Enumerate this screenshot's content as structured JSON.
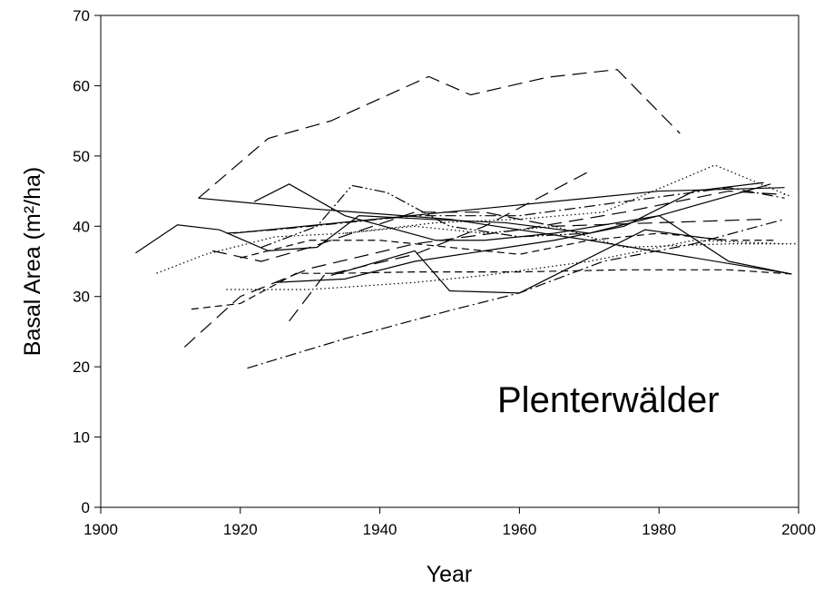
{
  "chart_data": {
    "type": "line",
    "xlabel": "Year",
    "ylabel": "Basal Area (m²/ha)",
    "annotation": "Plenterwälder",
    "color": "#000000",
    "xlim": [
      1900,
      2000
    ],
    "xticks": [
      1900,
      1920,
      1940,
      1960,
      1980,
      2000
    ],
    "ylim": [
      0,
      70
    ],
    "yticks": [
      0,
      10,
      20,
      30,
      40,
      50,
      60,
      70
    ],
    "grid": false,
    "series": [
      {
        "line_style": "dash",
        "x": [
          1914,
          1924,
          1933,
          1947,
          1953,
          1964,
          1974,
          1983
        ],
        "values": [
          44,
          52.5,
          55,
          61.3,
          58.7,
          61.2,
          62.3,
          53.2
        ]
      },
      {
        "line_style": "solid",
        "x": [
          1905,
          1911,
          1917,
          1924,
          1931,
          1937,
          1947,
          1958,
          1970,
          1980,
          1990,
          1999
        ],
        "values": [
          36.2,
          40.2,
          39.5,
          36.5,
          37,
          41.5,
          41,
          40.5,
          39,
          41.5,
          35,
          33.2
        ]
      },
      {
        "line_style": "dashdot",
        "x": [
          1921,
          1935,
          1950,
          1960,
          1972,
          1985,
          1998
        ],
        "values": [
          19.8,
          24,
          28,
          30.5,
          35,
          37.5,
          41
        ]
      },
      {
        "line_style": "solid",
        "x": [
          1914,
          1930,
          1950,
          1970,
          1999
        ],
        "values": [
          44,
          42.5,
          41,
          38,
          33.2
        ]
      },
      {
        "line_style": "dash",
        "x": [
          1912,
          1920,
          1930,
          1945,
          1960,
          1975,
          1990,
          1998
        ],
        "values": [
          22.8,
          30,
          34,
          37.5,
          39.5,
          42,
          45,
          44.5
        ]
      },
      {
        "line_style": "dot",
        "x": [
          1908,
          1915,
          1925,
          1935,
          1948,
          1960,
          1972,
          1988,
          1999
        ],
        "values": [
          33.3,
          36,
          38.5,
          39,
          40.5,
          41,
          42,
          48.7,
          44.2
        ]
      },
      {
        "line_style": "dashdotdot",
        "x": [
          1923,
          1931,
          1936,
          1941,
          1950,
          1960,
          1970
        ],
        "values": [
          37,
          40,
          45.8,
          44.8,
          40,
          38.5,
          39
        ]
      },
      {
        "line_style": "shortdash",
        "x": [
          1913,
          1920,
          1928,
          1934,
          1945,
          1960,
          1975,
          1990,
          1999
        ],
        "values": [
          28.2,
          29,
          33.3,
          33.3,
          33.5,
          33.5,
          33.8,
          33.8,
          33.2
        ]
      },
      {
        "line_style": "solid",
        "x": [
          1922,
          1927,
          1935,
          1948,
          1955,
          1965,
          1980,
          1996
        ],
        "values": [
          43.5,
          46,
          41.5,
          38,
          38,
          39,
          41.5,
          46
        ]
      },
      {
        "line_style": "dash",
        "x": [
          1927,
          1932,
          1945,
          1955,
          1970
        ],
        "values": [
          26.5,
          33,
          36,
          40,
          47.8
        ]
      },
      {
        "line_style": "dot",
        "x": [
          1918,
          1930,
          1945,
          1955,
          1970,
          1985,
          1998
        ],
        "values": [
          31,
          31,
          32,
          33,
          35,
          38,
          37.5
        ]
      },
      {
        "line_style": "dashdot",
        "x": [
          1918,
          1925,
          1935,
          1945,
          1960,
          1975,
          1990,
          1998
        ],
        "values": [
          39,
          39.5,
          40.5,
          41.5,
          41.5,
          43.5,
          45.5,
          44
        ]
      },
      {
        "line_style": "solid",
        "x": [
          1925,
          1935,
          1945,
          1955,
          1965,
          1975,
          1985,
          1995
        ],
        "values": [
          32,
          32.5,
          35,
          36.5,
          38,
          40,
          45,
          46.2
        ]
      },
      {
        "line_style": "shortdash",
        "x": [
          1920,
          1930,
          1940,
          1950,
          1960,
          1970,
          1980,
          1990,
          1997
        ],
        "values": [
          35.5,
          38,
          38,
          37,
          36,
          38,
          39,
          38,
          38
        ]
      },
      {
        "line_style": "solid",
        "x": [
          1933,
          1945,
          1950,
          1960,
          1978,
          1989
        ],
        "values": [
          33,
          36.5,
          30.8,
          30.5,
          39.5,
          38
        ]
      },
      {
        "line_style": "dash",
        "x": [
          1916,
          1923,
          1930,
          1945,
          1955,
          1965,
          1980,
          1995
        ],
        "values": [
          36.5,
          35,
          37,
          42,
          42,
          40,
          40.5,
          41
        ]
      },
      {
        "line_style": "dot",
        "x": [
          1935,
          1945,
          1955,
          1965,
          1975,
          1990,
          2000
        ],
        "values": [
          39,
          40,
          39,
          40,
          37,
          37.5,
          37.5
        ]
      },
      {
        "line_style": "solid",
        "x": [
          1919,
          1980,
          1998
        ],
        "values": [
          39,
          45,
          45.5
        ]
      }
    ]
  }
}
